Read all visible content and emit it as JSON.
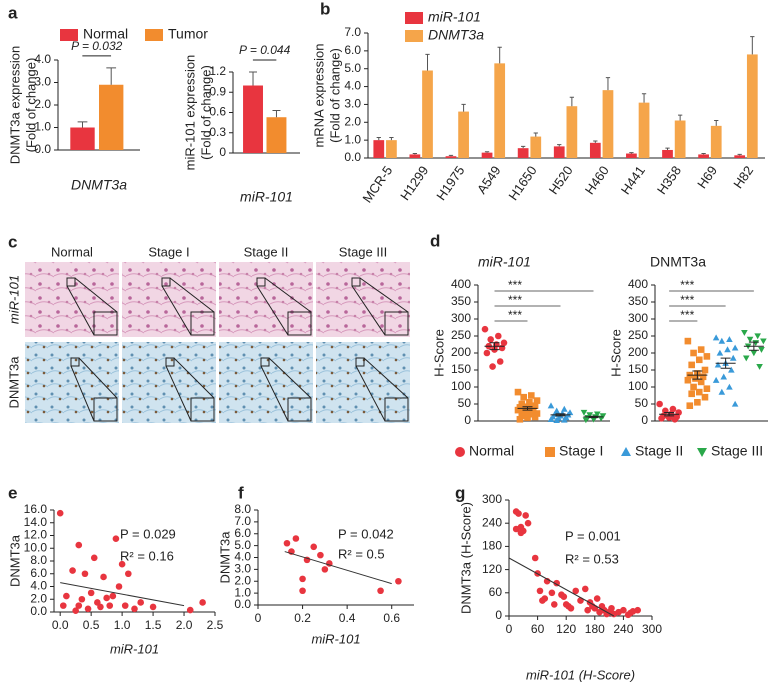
{
  "chart_data": [
    {
      "type": "bar",
      "panel": "a",
      "categories": [
        "DNMT3a"
      ],
      "y_label": [
        "DNMT3a expression",
        "(Fold of change)"
      ],
      "series": [
        {
          "name": "Normal",
          "color": "#e8353f",
          "values": [
            1.0
          ],
          "errors": [
            0.25
          ]
        },
        {
          "name": "Tumor",
          "color": "#f28c2e",
          "values": [
            2.9
          ],
          "errors": [
            0.75
          ]
        }
      ],
      "ylim": [
        0,
        4
      ],
      "yticks": [
        {
          "value": 0,
          "label": "0.0"
        },
        {
          "value": 1,
          "label": "1.0"
        },
        {
          "value": 2,
          "label": "2.0"
        },
        {
          "value": 3,
          "label": "3.0"
        },
        {
          "value": 4,
          "label": "4.0"
        }
      ],
      "annotations": [
        "P = 0.032"
      ]
    },
    {
      "type": "bar",
      "categories": [
        "miR-101"
      ],
      "y_label": [
        "miR-101 expression",
        "(Fold of change)"
      ],
      "series": [
        {
          "color": "#e8353f",
          "values": [
            1.0
          ],
          "errors": [
            0.2
          ]
        },
        {
          "color": "#f28c2e",
          "values": [
            0.53
          ],
          "errors": [
            0.1
          ]
        }
      ],
      "ylim": [
        0,
        1.2
      ],
      "yticks": [
        0,
        0.3,
        0.6,
        0.9,
        1.2
      ],
      "annotations": [
        "P = 0.044"
      ]
    },
    {
      "type": "bar",
      "panel": "b",
      "y_label": [
        "mRNA expression",
        "(Fold of change)"
      ],
      "categories": [
        "MCR-5",
        "H1299",
        "H1975",
        "A549",
        "H1650",
        "H520",
        "H460",
        "H441",
        "H358",
        "H69",
        "H82"
      ],
      "series": [
        {
          "name": "miR-101",
          "color": "#e8353f",
          "values": [
            1.0,
            0.2,
            0.1,
            0.3,
            0.55,
            0.65,
            0.85,
            0.25,
            0.45,
            0.2,
            0.15
          ],
          "errors": [
            0.15,
            0.05,
            0.05,
            0.05,
            0.1,
            0.1,
            0.1,
            0.05,
            0.1,
            0.05,
            0.05
          ]
        },
        {
          "name": "DNMT3a",
          "color": "#f5a54a",
          "values": [
            1.0,
            4.9,
            2.6,
            5.3,
            1.2,
            2.9,
            3.8,
            3.1,
            2.1,
            1.8,
            5.8
          ],
          "errors": [
            0.15,
            0.9,
            0.4,
            0.9,
            0.2,
            0.5,
            0.7,
            0.5,
            0.3,
            0.3,
            1.0
          ]
        }
      ],
      "ylim": [
        0,
        7
      ],
      "yticks": [
        {
          "value": 0,
          "label": "0.0"
        },
        {
          "value": 1,
          "label": "1.0"
        },
        {
          "value": 2,
          "label": "2.0"
        },
        {
          "value": 3,
          "label": "3.0"
        },
        {
          "value": 4,
          "label": "4.0"
        },
        {
          "value": 5,
          "label": "5.0"
        },
        {
          "value": 6,
          "label": "6.0"
        },
        {
          "value": 7,
          "label": "7.0"
        }
      ]
    },
    {
      "type": "dot",
      "panel": "d",
      "title": "miR-101",
      "y_label": [
        "H-Score"
      ],
      "series": [
        {
          "name": "Normal",
          "marker": "circle",
          "color": "#e8353f",
          "values": [
            270,
            250,
            240,
            230,
            225,
            220,
            215,
            210,
            200,
            175,
            160
          ],
          "mean": 220,
          "sem": 10
        },
        {
          "name": "Stage I",
          "marker": "square",
          "color": "#f28c2e",
          "values": [
            85,
            75,
            70,
            60,
            55,
            50,
            45,
            42,
            40,
            38,
            35,
            32,
            30,
            25,
            22,
            20,
            15,
            12,
            10,
            5
          ],
          "mean": 37,
          "sem": 5
        },
        {
          "name": "Stage II",
          "marker": "triangle-up",
          "color": "#3a9ad9",
          "values": [
            45,
            35,
            30,
            25,
            22,
            20,
            18,
            15,
            12,
            10,
            8,
            5,
            3,
            2
          ],
          "mean": 18,
          "sem": 3
        },
        {
          "name": "Stage III",
          "marker": "triangle-down",
          "color": "#2aa84a",
          "values": [
            25,
            20,
            18,
            15,
            12,
            10,
            8,
            5,
            3
          ],
          "mean": 12,
          "sem": 2
        }
      ],
      "ylim": [
        0,
        400
      ],
      "yticks": [
        0,
        50,
        100,
        150,
        200,
        250,
        300,
        350,
        400
      ],
      "annotations": [
        "***",
        "***",
        "***"
      ]
    },
    {
      "type": "dot",
      "title": "DNMT3a",
      "y_label": [
        "H-Score"
      ],
      "series": [
        {
          "marker": "circle",
          "color": "#e8353f",
          "values": [
            50,
            35,
            30,
            25,
            20,
            15,
            12,
            10,
            8,
            5
          ],
          "mean": 20,
          "sem": 5
        },
        {
          "marker": "square",
          "color": "#f28c2e",
          "values": [
            235,
            210,
            200,
            190,
            180,
            165,
            150,
            140,
            135,
            130,
            125,
            120,
            115,
            100,
            95,
            85,
            80,
            70,
            55,
            45
          ],
          "mean": 135,
          "sem": 12
        },
        {
          "marker": "triangle-up",
          "color": "#3a9ad9",
          "values": [
            245,
            240,
            235,
            215,
            210,
            200,
            185,
            170,
            165,
            150,
            130,
            120,
            100,
            85,
            50
          ],
          "mean": 170,
          "sem": 15
        },
        {
          "marker": "triangle-down",
          "color": "#2aa84a",
          "values": [
            260,
            250,
            240,
            235,
            230,
            220,
            210,
            200,
            185,
            160
          ],
          "mean": 220,
          "sem": 12
        }
      ],
      "ylim": [
        0,
        400
      ],
      "yticks": [
        0,
        50,
        100,
        150,
        200,
        250,
        300,
        350,
        400
      ],
      "annotations": [
        "***",
        "***",
        "***"
      ]
    },
    {
      "type": "scatter",
      "panel": "e",
      "x_label": "miR-101",
      "y_label": [
        "DNMT3a"
      ],
      "color": "#e8353f",
      "x": [
        0.0,
        0.05,
        0.1,
        0.2,
        0.25,
        0.3,
        0.3,
        0.35,
        0.4,
        0.45,
        0.5,
        0.55,
        0.6,
        0.65,
        0.7,
        0.75,
        0.8,
        0.85,
        0.9,
        0.95,
        1.0,
        1.05,
        1.1,
        1.2,
        1.3,
        1.5,
        2.1,
        2.3
      ],
      "values": [
        15.5,
        1.0,
        2.5,
        6.5,
        0.2,
        10.5,
        1.0,
        2.0,
        6.0,
        0.5,
        3.0,
        8.5,
        1.5,
        0.8,
        5.5,
        2.2,
        1.0,
        2.5,
        11.5,
        4.0,
        7.5,
        1.0,
        6.0,
        0.5,
        1.5,
        0.8,
        0.3,
        1.5
      ],
      "trendline": {
        "x": [
          0.0,
          2.0
        ],
        "y": [
          4.6,
          1.0
        ]
      },
      "xlim": [
        -0.1,
        2.5
      ],
      "xticks": [
        {
          "value": 0,
          "label": "0.0"
        },
        {
          "value": 0.5,
          "label": "0.5"
        },
        {
          "value": 1,
          "label": "1.0"
        },
        {
          "value": 1.5,
          "label": "1.5"
        },
        {
          "value": 2,
          "label": "2.0"
        },
        {
          "value": 2.5,
          "label": "2.5"
        }
      ],
      "ylim": [
        0,
        16
      ],
      "yticks": [
        {
          "value": 0,
          "label": "0.0"
        },
        {
          "value": 2,
          "label": "2.0"
        },
        {
          "value": 4,
          "label": "4.0"
        },
        {
          "value": 6,
          "label": "6.0"
        },
        {
          "value": 8,
          "label": "8.0"
        },
        {
          "value": 10,
          "label": "10.0"
        },
        {
          "value": 12,
          "label": "12.0"
        },
        {
          "value": 14,
          "label": "14.0"
        },
        {
          "value": 16,
          "label": "16.0"
        }
      ],
      "annotations": [
        "P = 0.029",
        "R² = 0.16"
      ]
    },
    {
      "type": "scatter",
      "panel": "f",
      "x_label": "miR-101",
      "y_label": [
        "DNMT3a"
      ],
      "color": "#e8353f",
      "x": [
        0.13,
        0.15,
        0.17,
        0.2,
        0.2,
        0.22,
        0.25,
        0.28,
        0.3,
        0.32,
        0.55,
        0.63
      ],
      "values": [
        5.2,
        4.5,
        5.6,
        2.2,
        1.2,
        3.8,
        4.9,
        4.2,
        3.0,
        3.5,
        1.2,
        2.0
      ],
      "trendline": {
        "x": [
          0.12,
          0.6
        ],
        "y": [
          4.5,
          1.8
        ]
      },
      "xlim": [
        0,
        0.7
      ],
      "xticks": [
        0,
        0.2,
        0.4,
        0.6
      ],
      "ylim": [
        0,
        8
      ],
      "yticks": [
        {
          "value": 0,
          "label": "0.0"
        },
        {
          "value": 1,
          "label": "1.0"
        },
        {
          "value": 2,
          "label": "2.0"
        },
        {
          "value": 3,
          "label": "3.0"
        },
        {
          "value": 4,
          "label": "4.0"
        },
        {
          "value": 5,
          "label": "5.0"
        },
        {
          "value": 6,
          "label": "6.0"
        },
        {
          "value": 7,
          "label": "7.0"
        },
        {
          "value": 8,
          "label": "8.0"
        }
      ],
      "annotations": [
        "P = 0.042",
        "R² = 0.5"
      ]
    },
    {
      "type": "scatter",
      "panel": "g",
      "x_label": "miR-101 (H-Score)",
      "y_label": [
        "DNMT3a (H-Score)"
      ],
      "color": "#e8353f",
      "x": [
        15,
        20,
        25,
        30,
        35,
        15,
        25,
        40,
        55,
        60,
        65,
        70,
        75,
        80,
        90,
        95,
        100,
        110,
        115,
        120,
        125,
        130,
        140,
        150,
        160,
        165,
        170,
        175,
        180,
        185,
        190,
        195,
        200,
        205,
        210,
        215,
        220,
        230,
        240,
        250,
        255,
        260,
        270
      ],
      "values": [
        270,
        265,
        230,
        220,
        260,
        225,
        215,
        240,
        150,
        110,
        65,
        40,
        45,
        90,
        60,
        30,
        85,
        55,
        50,
        30,
        25,
        20,
        65,
        40,
        70,
        15,
        35,
        25,
        20,
        45,
        10,
        25,
        15,
        5,
        10,
        20,
        5,
        10,
        15,
        3,
        8,
        12,
        15
      ],
      "trendline": {
        "x": [
          0,
          220
        ],
        "y": [
          150,
          0
        ]
      },
      "xlim": [
        0,
        300
      ],
      "xticks": [
        0,
        60,
        120,
        180,
        240,
        300
      ],
      "ylim": [
        0,
        300
      ],
      "yticks": [
        0,
        60,
        120,
        180,
        240,
        300
      ],
      "annotations": [
        "P = 0.001",
        "R² = 0.53"
      ]
    }
  ],
  "images_panel": {
    "panel": "c",
    "columns": [
      "Normal",
      "Stage I",
      "Stage II",
      "Stage III"
    ],
    "rows": [
      "miR-101",
      "DNMT3a"
    ]
  }
}
